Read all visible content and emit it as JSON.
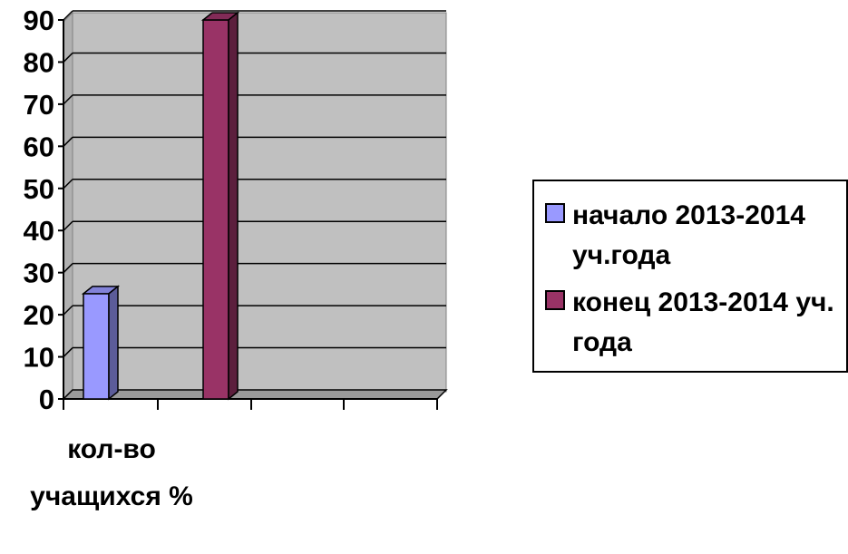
{
  "chart_data": {
    "type": "bar",
    "categories": [
      "кол-во учащихся %"
    ],
    "series": [
      {
        "name": "начало 2013-2014 уч.года",
        "values": [
          25
        ],
        "color": "#9999ff"
      },
      {
        "name": "конец 2013-2014 уч. года",
        "values": [
          90
        ],
        "color": "#993366"
      }
    ],
    "title": "",
    "xlabel": "",
    "ylabel": "",
    "ylim": [
      0,
      90
    ],
    "yticks": [
      0,
      10,
      20,
      30,
      40,
      50,
      60,
      70,
      80,
      90
    ],
    "grid": true,
    "plot_background": "#c0c0c0",
    "legend_position": "right",
    "style": "3d-bar"
  }
}
